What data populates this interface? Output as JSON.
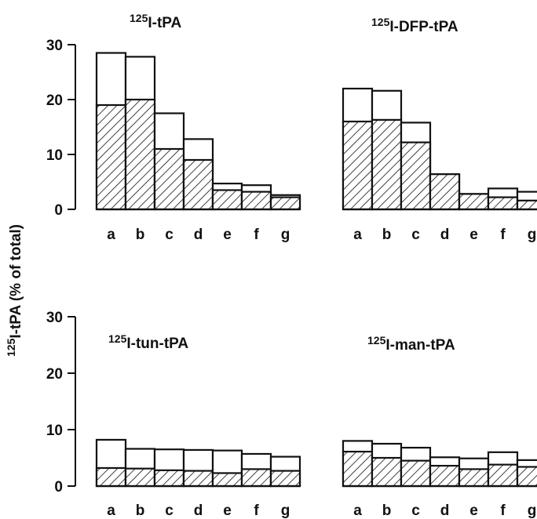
{
  "y_axis_title": {
    "sup": "125",
    "main": "I-tPA (% of total)"
  },
  "chart_data": [
    {
      "type": "bar",
      "title_sup": "125",
      "title": "I-tPA",
      "categories": [
        "a",
        "b",
        "c",
        "d",
        "e",
        "f",
        "g"
      ],
      "series": [
        {
          "values": [
            19,
            20,
            11,
            9,
            3.5,
            3.2,
            2.2
          ],
          "pattern": "hatched"
        },
        {
          "values": [
            28.5,
            27.8,
            17.5,
            12.8,
            4.7,
            4.4,
            2.6
          ],
          "pattern": "open"
        }
      ],
      "ylim": [
        0,
        30
      ],
      "yticks": [
        0,
        10,
        20,
        30
      ],
      "show_y_axis": true
    },
    {
      "type": "bar",
      "title_sup": "125",
      "title": "I-DFP-tPA",
      "categories": [
        "a",
        "b",
        "c",
        "d",
        "e",
        "f",
        "g"
      ],
      "series": [
        {
          "values": [
            16,
            16.3,
            12.2,
            6.4,
            2.8,
            2.2,
            1.6
          ],
          "pattern": "hatched"
        },
        {
          "values": [
            22,
            21.6,
            15.8,
            6.4,
            2.8,
            3.8,
            3.2
          ],
          "pattern": "open"
        }
      ],
      "ylim": [
        0,
        30
      ],
      "yticks": [
        0,
        10,
        20,
        30
      ],
      "show_y_axis": false
    },
    {
      "type": "bar",
      "title_sup": "125",
      "title": "I-tun-tPA",
      "categories": [
        "a",
        "b",
        "c",
        "d",
        "e",
        "f",
        "g"
      ],
      "series": [
        {
          "values": [
            3.2,
            3.1,
            2.8,
            2.7,
            2.3,
            3.0,
            2.7
          ],
          "pattern": "hatched"
        },
        {
          "values": [
            8.2,
            6.6,
            6.5,
            6.4,
            6.3,
            5.7,
            5.2
          ],
          "pattern": "open"
        }
      ],
      "ylim": [
        0,
        30
      ],
      "yticks": [
        0,
        10,
        20,
        30
      ],
      "show_y_axis": true
    },
    {
      "type": "bar",
      "title_sup": "125",
      "title": "I-man-tPA",
      "categories": [
        "a",
        "b",
        "c",
        "d",
        "e",
        "f",
        "g"
      ],
      "series": [
        {
          "values": [
            6.1,
            5.0,
            4.5,
            3.6,
            3.0,
            3.8,
            3.4
          ],
          "pattern": "hatched"
        },
        {
          "values": [
            8.0,
            7.5,
            6.8,
            5.1,
            4.9,
            6.0,
            4.6
          ],
          "pattern": "open"
        }
      ],
      "ylim": [
        0,
        30
      ],
      "yticks": [
        0,
        10,
        20,
        30
      ],
      "show_y_axis": false
    }
  ]
}
